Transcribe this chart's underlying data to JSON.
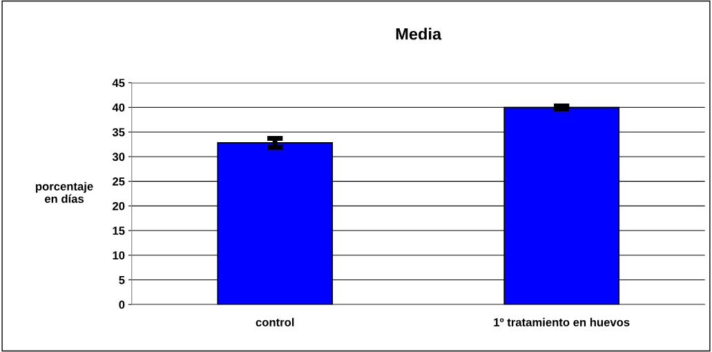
{
  "chart_data": {
    "type": "bar",
    "title": "Media",
    "ylabel": "porcentaje\nen días",
    "categories": [
      "control",
      "1º tratamiento en huevos"
    ],
    "values": [
      32.8,
      40.0
    ],
    "errors": [
      0.9,
      0.3
    ],
    "color": "#0000ff",
    "ylim": [
      0,
      45
    ],
    "yticks": [
      0,
      5,
      10,
      15,
      20,
      25,
      30,
      35,
      40,
      45
    ],
    "grid": "y",
    "legend": false
  }
}
